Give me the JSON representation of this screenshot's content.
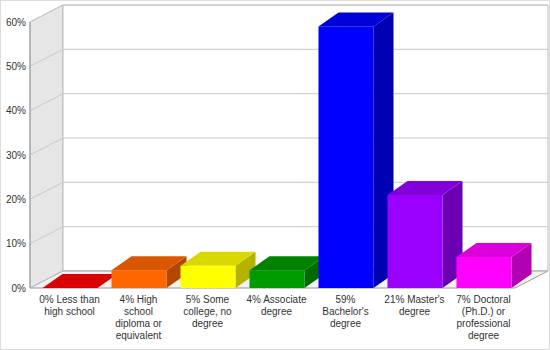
{
  "chart_data": {
    "type": "bar",
    "categories": [
      "0% Less than high school",
      "4% High school diploma or equivalent",
      "5% Some college, no degree",
      "4% Associate degree",
      "59% Bachelor's degree",
      "21% Master's degree",
      "7% Doctoral (Ph.D.) or professional degree"
    ],
    "values": [
      0,
      4,
      5,
      4,
      59,
      21,
      7
    ],
    "colors": [
      "#ff0000",
      "#ff6600",
      "#ffff00",
      "#009900",
      "#0000ff",
      "#9900ff",
      "#ff00ff"
    ],
    "ylim": [
      0,
      60
    ],
    "yticks": [
      {
        "value": 0,
        "label": "0%"
      },
      {
        "value": 10,
        "label": "10%"
      },
      {
        "value": 20,
        "label": "20%"
      },
      {
        "value": 30,
        "label": "30%"
      },
      {
        "value": 40,
        "label": "40%"
      },
      {
        "value": 50,
        "label": "50%"
      },
      {
        "value": 60,
        "label": "60%"
      }
    ],
    "grid": true
  }
}
